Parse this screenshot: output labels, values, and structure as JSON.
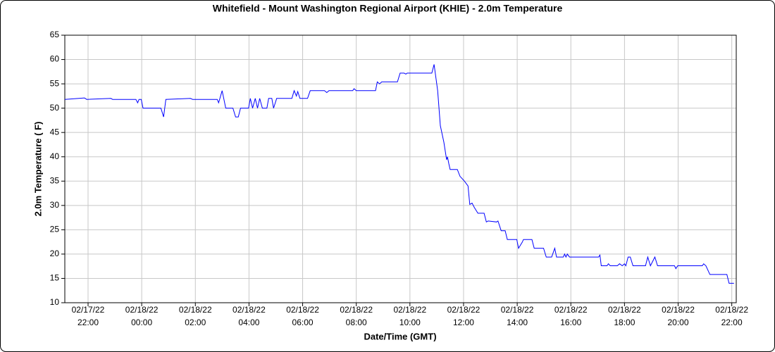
{
  "chart_data": {
    "type": "line",
    "title": "Whitefield - Mount Washington Regional Airport (KHIE) - 2.0m Temperature",
    "x_label": "Date/Time (GMT)",
    "y_label": "2.0m Temperature ( F)",
    "grid": true,
    "xlim": [
      "2022-02-17T21:08",
      "2022-02-18T22:10"
    ],
    "xticks": [
      {
        "value": "2022-02-17T22:00",
        "label": [
          "02/17/22",
          "22:00"
        ]
      },
      {
        "value": "2022-02-18T00:00",
        "label": [
          "02/18/22",
          "00:00"
        ]
      },
      {
        "value": "2022-02-18T02:00",
        "label": [
          "02/18/22",
          "02:00"
        ]
      },
      {
        "value": "2022-02-18T04:00",
        "label": [
          "02/18/22",
          "04:00"
        ]
      },
      {
        "value": "2022-02-18T06:00",
        "label": [
          "02/18/22",
          "06:00"
        ]
      },
      {
        "value": "2022-02-18T08:00",
        "label": [
          "02/18/22",
          "08:00"
        ]
      },
      {
        "value": "2022-02-18T10:00",
        "label": [
          "02/18/22",
          "10:00"
        ]
      },
      {
        "value": "2022-02-18T12:00",
        "label": [
          "02/18/22",
          "12:00"
        ]
      },
      {
        "value": "2022-02-18T14:00",
        "label": [
          "02/18/22",
          "14:00"
        ]
      },
      {
        "value": "2022-02-18T16:00",
        "label": [
          "02/18/22",
          "16:00"
        ]
      },
      {
        "value": "2022-02-18T18:00",
        "label": [
          "02/18/22",
          "18:00"
        ]
      },
      {
        "value": "2022-02-18T20:00",
        "label": [
          "02/18/22",
          "20:00"
        ]
      },
      {
        "value": "2022-02-18T22:00",
        "label": [
          "02/18/22",
          "22:00"
        ]
      }
    ],
    "ylim": [
      10,
      65
    ],
    "yticks": [
      10,
      15,
      20,
      25,
      30,
      35,
      40,
      45,
      50,
      55,
      60,
      65
    ],
    "x": [
      "2022-02-17T21:08",
      "2022-02-17T21:52",
      "2022-02-17T21:57",
      "2022-02-17T22:51",
      "2022-02-17T22:55",
      "2022-02-17T23:47",
      "2022-02-17T23:51",
      "2022-02-17T23:54",
      "2022-02-17T23:59",
      "2022-02-18T00:03",
      "2022-02-18T00:43",
      "2022-02-18T00:49",
      "2022-02-18T00:54",
      "2022-02-18T01:49",
      "2022-02-18T01:54",
      "2022-02-18T02:49",
      "2022-02-18T02:52",
      "2022-02-18T03:00",
      "2022-02-18T03:08",
      "2022-02-18T03:24",
      "2022-02-18T03:30",
      "2022-02-18T03:36",
      "2022-02-18T03:41",
      "2022-02-18T03:59",
      "2022-02-18T04:03",
      "2022-02-18T04:08",
      "2022-02-18T04:14",
      "2022-02-18T04:19",
      "2022-02-18T04:24",
      "2022-02-18T04:30",
      "2022-02-18T04:40",
      "2022-02-18T04:44",
      "2022-02-18T04:51",
      "2022-02-18T04:55",
      "2022-02-18T05:02",
      "2022-02-18T05:36",
      "2022-02-18T05:41",
      "2022-02-18T05:46",
      "2022-02-18T05:49",
      "2022-02-18T05:54",
      "2022-02-18T06:11",
      "2022-02-18T06:17",
      "2022-02-18T06:49",
      "2022-02-18T06:54",
      "2022-02-18T06:59",
      "2022-02-18T07:52",
      "2022-02-18T07:55",
      "2022-02-18T08:00",
      "2022-02-18T08:43",
      "2022-02-18T08:47",
      "2022-02-18T08:52",
      "2022-02-18T08:57",
      "2022-02-18T09:32",
      "2022-02-18T09:38",
      "2022-02-18T09:47",
      "2022-02-18T09:51",
      "2022-02-18T09:54",
      "2022-02-18T10:49",
      "2022-02-18T10:54",
      "2022-02-18T10:57",
      "2022-02-18T11:02",
      "2022-02-18T11:08",
      "2022-02-18T11:16",
      "2022-02-18T11:22",
      "2022-02-18T11:24",
      "2022-02-18T11:27",
      "2022-02-18T11:30",
      "2022-02-18T11:46",
      "2022-02-18T11:52",
      "2022-02-18T12:02",
      "2022-02-18T12:10",
      "2022-02-18T12:14",
      "2022-02-18T12:19",
      "2022-02-18T12:24",
      "2022-02-18T12:32",
      "2022-02-18T12:46",
      "2022-02-18T12:51",
      "2022-02-18T12:55",
      "2022-02-18T13:14",
      "2022-02-18T13:17",
      "2022-02-18T13:24",
      "2022-02-18T13:33",
      "2022-02-18T13:38",
      "2022-02-18T13:59",
      "2022-02-18T14:03",
      "2022-02-18T14:11",
      "2022-02-18T14:14",
      "2022-02-18T14:33",
      "2022-02-18T14:38",
      "2022-02-18T14:59",
      "2022-02-18T15:05",
      "2022-02-18T15:17",
      "2022-02-18T15:24",
      "2022-02-18T15:28",
      "2022-02-18T15:43",
      "2022-02-18T15:46",
      "2022-02-18T15:49",
      "2022-02-18T15:52",
      "2022-02-18T15:57",
      "2022-02-18T17:02",
      "2022-02-18T17:05",
      "2022-02-18T17:08",
      "2022-02-18T17:21",
      "2022-02-18T17:24",
      "2022-02-18T17:28",
      "2022-02-18T17:44",
      "2022-02-18T17:49",
      "2022-02-18T17:55",
      "2022-02-18T18:00",
      "2022-02-18T18:03",
      "2022-02-18T18:08",
      "2022-02-18T18:13",
      "2022-02-18T18:19",
      "2022-02-18T18:47",
      "2022-02-18T18:52",
      "2022-02-18T18:58",
      "2022-02-18T19:08",
      "2022-02-18T19:14",
      "2022-02-18T19:52",
      "2022-02-18T19:55",
      "2022-02-18T19:59",
      "2022-02-18T20:54",
      "2022-02-18T20:57",
      "2022-02-18T21:02",
      "2022-02-18T21:11",
      "2022-02-18T21:49",
      "2022-02-18T21:54",
      "2022-02-18T22:05"
    ],
    "series": [
      {
        "name": "2.0m Temperature",
        "color": "#0000ff",
        "values": [
          51.8,
          52.1,
          51.8,
          52,
          51.8,
          51.8,
          51.1,
          51.8,
          51.8,
          50,
          50,
          48.2,
          51.8,
          52,
          51.8,
          51.8,
          51.1,
          53.6,
          50,
          50,
          48.2,
          48.2,
          50,
          50,
          52,
          50,
          52,
          50,
          52,
          50,
          50,
          52,
          52,
          50,
          52,
          52,
          53.6,
          52.5,
          53.4,
          52,
          52,
          53.6,
          53.6,
          53.2,
          53.6,
          53.6,
          54,
          53.6,
          53.6,
          55.4,
          55,
          55.4,
          55.4,
          57.2,
          57.2,
          57,
          57.2,
          57.2,
          59,
          57,
          53.6,
          46.4,
          43,
          39.4,
          40,
          38.6,
          37.4,
          37.4,
          36,
          35,
          34,
          30.2,
          30.5,
          29.6,
          28.4,
          28.4,
          26.6,
          26.8,
          26.6,
          26.8,
          24.8,
          24.8,
          23,
          23,
          21.2,
          22.4,
          23,
          23,
          21.2,
          21.2,
          19.4,
          19.4,
          21.2,
          19.4,
          19.4,
          20,
          19.4,
          20,
          19.4,
          19.4,
          19.8,
          17.6,
          17.6,
          18,
          17.6,
          17.6,
          18,
          17.6,
          18,
          17.6,
          19.4,
          19.4,
          17.6,
          17.6,
          19.4,
          17.6,
          19.4,
          17.6,
          17.6,
          17,
          17.6,
          17.6,
          18,
          17.6,
          15.8,
          15.8,
          14,
          14
        ]
      }
    ]
  }
}
